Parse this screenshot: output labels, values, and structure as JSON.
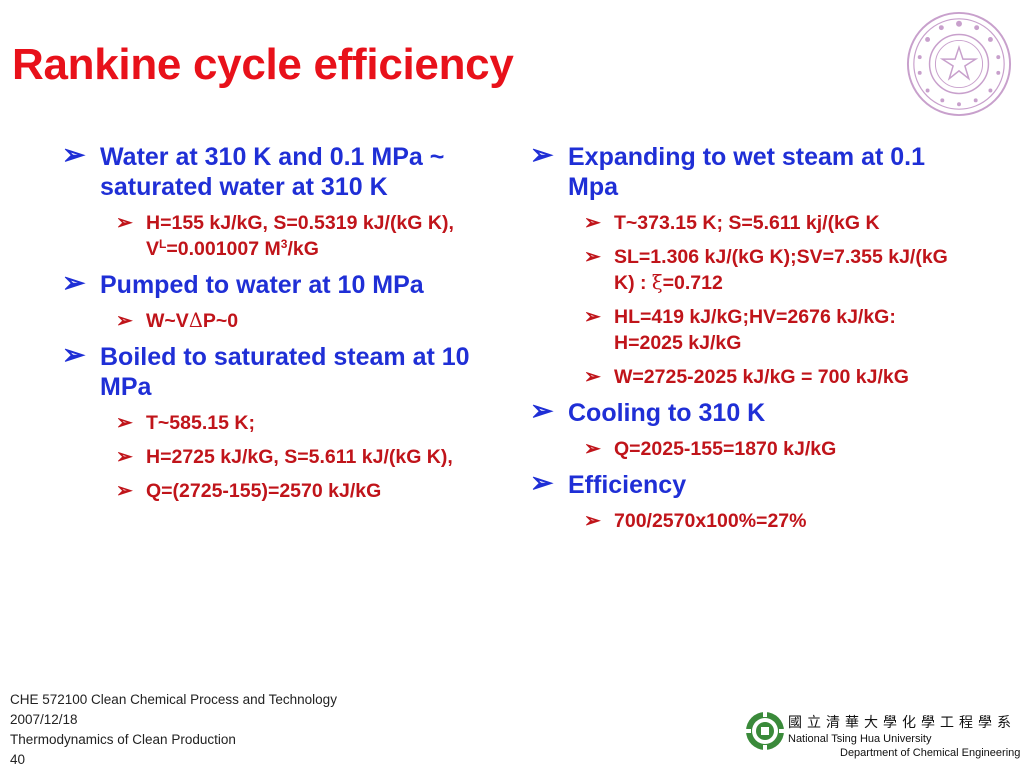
{
  "title": "Rankine cycle efficiency",
  "colors": {
    "title": "#e8111a",
    "level1": "#1f2fd6",
    "level2": "#c0141a",
    "seal": "#c8a0cc",
    "logo": "#3a8a3a"
  },
  "icons": {
    "bullet": "arrow-bullet-icon",
    "seal": "university-seal-icon",
    "logo": "nthu-logo-icon"
  },
  "bullet_glyph": "➢",
  "left": {
    "item1": {
      "text": "Water at 310 K and 0.1 MPa ~ saturated water at 310 K",
      "sub1": {
        "a": "H=155 kJ/kG, S=0.5319 kJ/(kG K), V",
        "sup1": "L",
        "b": "=0.001007 M",
        "sup2": "3",
        "c": "/kG"
      }
    },
    "item2": {
      "text": "Pumped to water at 10 MPa",
      "sub1": {
        "a": "W~V",
        "delta": "Δ",
        "b": "P~0"
      }
    },
    "item3": {
      "text": "Boiled to saturated steam at 10 MPa",
      "sub1": "T~585.15 K;",
      "sub2": "H=2725 kJ/kG, S=5.611 kJ/(kG K),",
      "sub3": "Q=(2725-155)=2570 kJ/kG"
    }
  },
  "right": {
    "item1": {
      "text": "Expanding to wet steam at 0.1 Mpa",
      "sub1": "T~373.15 K; S=5.611 kj/(kG K",
      "sub2": {
        "a": "SL=1.306 kJ/(kG K);SV=7.355 kJ/(kG K) : ",
        "xi": "ξ",
        "b": "=0.712"
      },
      "sub3": "HL=419 kJ/kG;HV=2676 kJ/kG:  H=2025 kJ/kG",
      "sub4": "W=2725-2025 kJ/kG = 700 kJ/kG"
    },
    "item2": {
      "text": "Cooling to 310 K",
      "sub1": "Q=2025-155=1870 kJ/kG"
    },
    "item3": {
      "text": "Efficiency",
      "sub1": "700/2570x100%=27%"
    }
  },
  "footer": {
    "course": "CHE 572100 Clean Chemical Process and Technology",
    "date": "2007/12/18",
    "topic": "Thermodynamics of Clean Production",
    "page": "40"
  },
  "dept": {
    "chinese": "國立清華大學化學工程學系",
    "university": "National Tsing Hua University",
    "department": "Department of Chemical Engineering"
  }
}
